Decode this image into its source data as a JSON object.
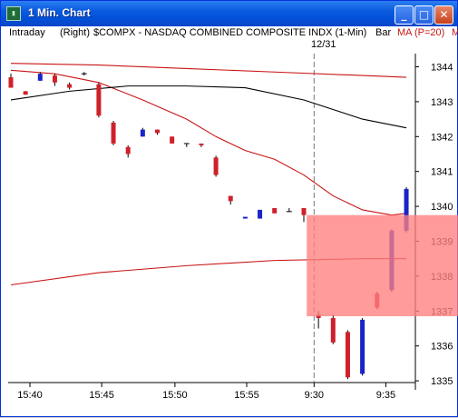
{
  "window": {
    "title": "1 Min. Chart",
    "icon": "chart-app-icon",
    "buttons": {
      "minimize": "_",
      "maximize": "□",
      "close": "✕"
    }
  },
  "header": {
    "interval": "Intraday",
    "axis_side": "(Right)",
    "symbol": "$COMPX - NASDAQ COMBINED COMPOSITE INDX (1-Min)",
    "style": "Bar",
    "indicator": "MA (P=20)",
    "cut_text": "M"
  },
  "date_marker": "12/31",
  "colors": {
    "up": "#1a24c8",
    "down": "#d0202a",
    "ma": "#c81414",
    "ma2": "#000000",
    "zone": "#ff7f7f"
  },
  "chart_data": {
    "type": "candlestick",
    "x_tick_labels": [
      "15:40",
      "15:45",
      "15:50",
      "15:55",
      "9:30",
      "9:35"
    ],
    "y_tick_labels": [
      "1344",
      "1343",
      "1342",
      "1341",
      "1340",
      "1339",
      "1338",
      "1337",
      "1336",
      "1335"
    ],
    "ylim": [
      1334.9,
      1344.4
    ],
    "session_break_label": "12/31",
    "candles": [
      {
        "slot": 0,
        "open": 1343.7,
        "close": 1343.4,
        "high": 1343.8,
        "low": 1343.4
      },
      {
        "slot": 1,
        "open": 1343.3,
        "close": 1343.2,
        "high": 1343.3,
        "low": 1343.2
      },
      {
        "slot": 2,
        "open": 1343.6,
        "close": 1343.8,
        "high": 1343.85,
        "low": 1343.6
      },
      {
        "slot": 3,
        "open": 1343.75,
        "close": 1343.55,
        "high": 1343.8,
        "low": 1343.45
      },
      {
        "slot": 4,
        "open": 1343.5,
        "close": 1343.4,
        "high": 1343.55,
        "low": 1343.35
      },
      {
        "slot": 5,
        "open": 1343.8,
        "close": 1343.8,
        "high": 1343.85,
        "low": 1343.75
      },
      {
        "slot": 6,
        "open": 1343.5,
        "close": 1342.6,
        "high": 1343.55,
        "low": 1342.55
      },
      {
        "slot": 7,
        "open": 1342.4,
        "close": 1341.8,
        "high": 1342.45,
        "low": 1341.75
      },
      {
        "slot": 8,
        "open": 1341.7,
        "close": 1341.5,
        "high": 1341.75,
        "low": 1341.4
      },
      {
        "slot": 9,
        "open": 1342.0,
        "close": 1342.2,
        "high": 1342.25,
        "low": 1342.0
      },
      {
        "slot": 10,
        "open": 1342.2,
        "close": 1342.1,
        "high": 1342.2,
        "low": 1342.05
      },
      {
        "slot": 11,
        "open": 1342.0,
        "close": 1341.8,
        "high": 1342.0,
        "low": 1341.8
      },
      {
        "slot": 12,
        "open": 1341.8,
        "close": 1341.8,
        "high": 1341.8,
        "low": 1341.7
      },
      {
        "slot": 13,
        "open": 1341.8,
        "close": 1341.75,
        "high": 1341.8,
        "low": 1341.7
      },
      {
        "slot": 14,
        "open": 1341.4,
        "close": 1340.9,
        "high": 1341.45,
        "low": 1340.85
      },
      {
        "slot": 15,
        "open": 1340.3,
        "close": 1340.15,
        "high": 1340.3,
        "low": 1340.05
      },
      {
        "slot": 16,
        "open": 1339.65,
        "close": 1339.7,
        "high": 1339.7,
        "low": 1339.65
      },
      {
        "slot": 17,
        "open": 1339.65,
        "close": 1339.9,
        "high": 1339.9,
        "low": 1339.65
      },
      {
        "slot": 18,
        "open": 1339.95,
        "close": 1339.8,
        "high": 1339.95,
        "low": 1339.8
      },
      {
        "slot": 19,
        "open": 1339.85,
        "close": 1339.85,
        "high": 1339.95,
        "low": 1339.85
      },
      {
        "slot": 20,
        "open": 1339.95,
        "close": 1339.75,
        "high": 1339.95,
        "low": 1339.55
      },
      {
        "slot": 21,
        "open": 1336.9,
        "close": 1336.8,
        "high": 1337.0,
        "low": 1336.5
      },
      {
        "slot": 22,
        "open": 1336.8,
        "close": 1336.1,
        "high": 1336.9,
        "low": 1336.05
      },
      {
        "slot": 23,
        "open": 1336.4,
        "close": 1335.1,
        "high": 1336.45,
        "low": 1335.05
      },
      {
        "slot": 24,
        "open": 1335.2,
        "close": 1336.75,
        "high": 1336.8,
        "low": 1335.15
      },
      {
        "slot": 25,
        "open": 1337.5,
        "close": 1337.1,
        "high": 1337.55,
        "low": 1337.05
      },
      {
        "slot": 26,
        "open": 1337.6,
        "close": 1339.3,
        "high": 1339.35,
        "low": 1337.55
      },
      {
        "slot": 27,
        "open": 1339.3,
        "close": 1340.5,
        "high": 1340.55,
        "low": 1339.25
      }
    ],
    "series": [
      {
        "name": "MA (P=20)",
        "color": "#c81414",
        "points": [
          [
            0,
            1343.9
          ],
          [
            3,
            1343.8
          ],
          [
            6,
            1343.55
          ],
          [
            9,
            1343.05
          ],
          [
            12,
            1342.5
          ],
          [
            14,
            1342.0
          ],
          [
            16,
            1341.6
          ],
          [
            18,
            1341.35
          ],
          [
            20,
            1340.9
          ],
          [
            22,
            1340.3
          ],
          [
            24,
            1339.9
          ],
          [
            26,
            1339.75
          ],
          [
            27,
            1339.8
          ]
        ]
      },
      {
        "name": "",
        "color": "#000000",
        "points": [
          [
            0,
            1343.05
          ],
          [
            4,
            1343.3
          ],
          [
            8,
            1343.45
          ],
          [
            12,
            1343.45
          ],
          [
            16,
            1343.4
          ],
          [
            20,
            1343.05
          ],
          [
            24,
            1342.5
          ],
          [
            27,
            1342.25
          ]
        ]
      },
      {
        "name": "",
        "color": "#c81414",
        "points": [
          [
            0,
            1344.1
          ],
          [
            6,
            1344.05
          ],
          [
            12,
            1343.95
          ],
          [
            18,
            1343.85
          ],
          [
            24,
            1343.75
          ],
          [
            27,
            1343.7
          ]
        ]
      },
      {
        "name": "",
        "color": "#c81414",
        "points": [
          [
            0,
            1337.75
          ],
          [
            6,
            1338.1
          ],
          [
            12,
            1338.3
          ],
          [
            18,
            1338.45
          ],
          [
            24,
            1338.5
          ],
          [
            27,
            1338.5
          ]
        ]
      }
    ],
    "zone": {
      "slot_start": 20.2,
      "y_top": 1339.75,
      "y_bottom": 1336.85
    },
    "session_break_slot": 20.7
  }
}
